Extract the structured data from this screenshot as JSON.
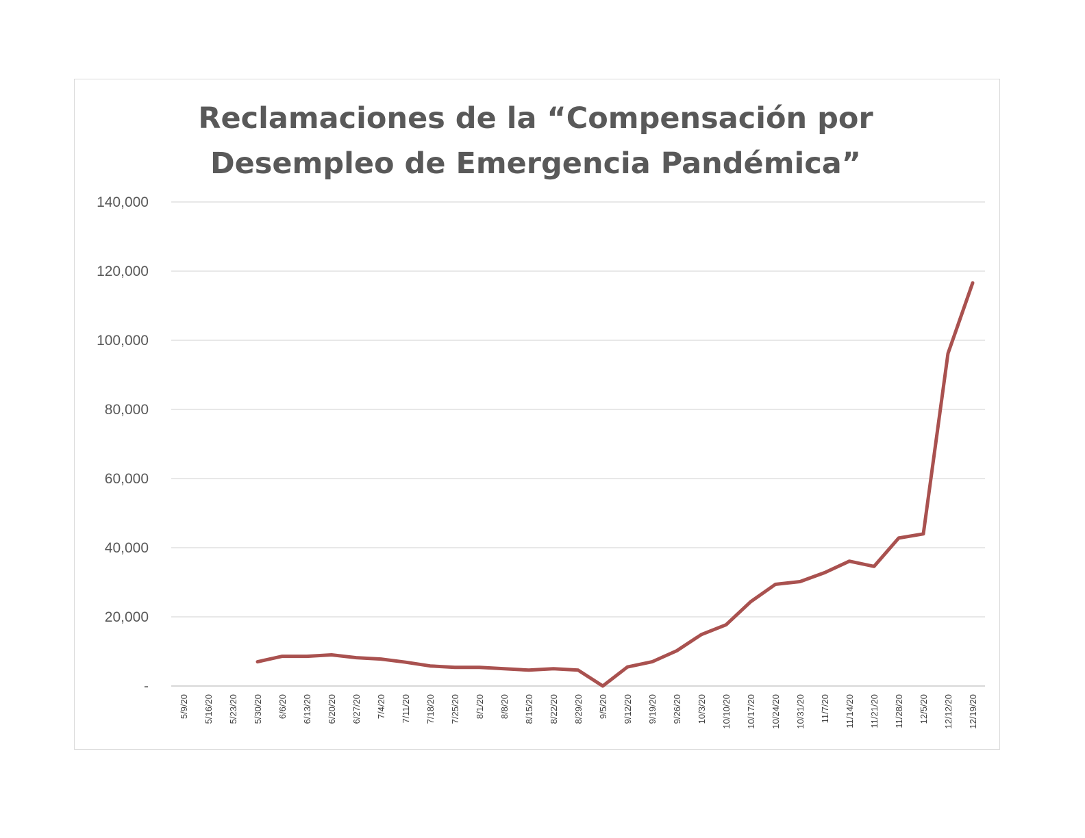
{
  "chart_data": {
    "type": "line",
    "title_lines": [
      "Reclamaciones de la “Compensación por",
      "Desempleo de Emergencia Pandémica”"
    ],
    "xlabel": "",
    "ylabel": "",
    "categories": [
      "5/9/20",
      "5/16/20",
      "5/23/20",
      "5/30/20",
      "6/6/20",
      "6/13/20",
      "6/20/20",
      "6/27/20",
      "7/4/20",
      "7/11/20",
      "7/18/20",
      "7/25/20",
      "8/1/20",
      "8/8/20",
      "8/15/20",
      "8/22/20",
      "8/29/20",
      "9/5/20",
      "9/12/20",
      "9/19/20",
      "9/26/20",
      "10/3/20",
      "10/10/20",
      "10/17/20",
      "10/24/20",
      "10/31/20",
      "11/7/20",
      "11/14/20",
      "11/21/20",
      "11/28/20",
      "12/5/20",
      "12/12/20",
      "12/19/20"
    ],
    "series": [
      {
        "name": "",
        "color": "#a9514f",
        "values": [
          null,
          null,
          null,
          7000,
          8600,
          8600,
          9000,
          8200,
          7800,
          6900,
          5800,
          5400,
          5400,
          5000,
          4600,
          5000,
          4600,
          0,
          5500,
          7000,
          10200,
          14900,
          17700,
          24400,
          29400,
          30200,
          32800,
          36100,
          34600,
          42800,
          44000,
          96200,
          116600
        ]
      }
    ],
    "ylim": [
      0,
      140000
    ],
    "yticks": [
      0,
      20000,
      40000,
      60000,
      80000,
      100000,
      120000,
      140000
    ],
    "ytick_labels": [
      "-",
      "20,000",
      "40,000",
      "60,000",
      "80,000",
      "100,000",
      "120,000",
      "140,000"
    ],
    "grid": true,
    "legend": "none"
  }
}
